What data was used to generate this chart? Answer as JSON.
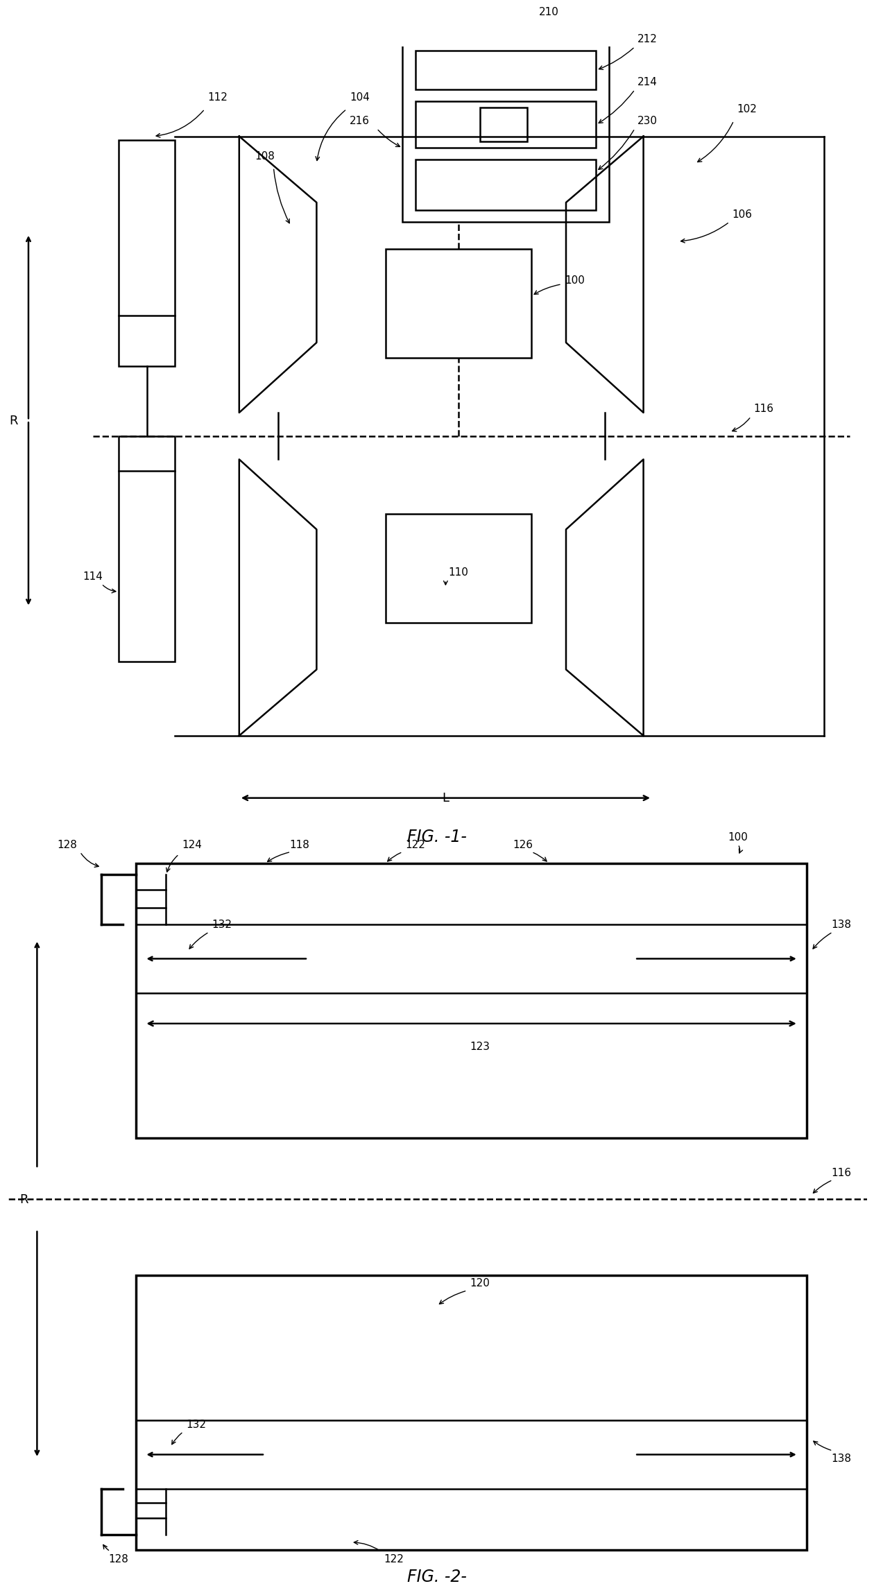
{
  "fig_width": 12.4,
  "fig_height": 22.45,
  "bg_color": "#ffffff",
  "line_color": "#000000",
  "lw": 1.8,
  "lw_thick": 2.5,
  "lw_thin": 1.2
}
